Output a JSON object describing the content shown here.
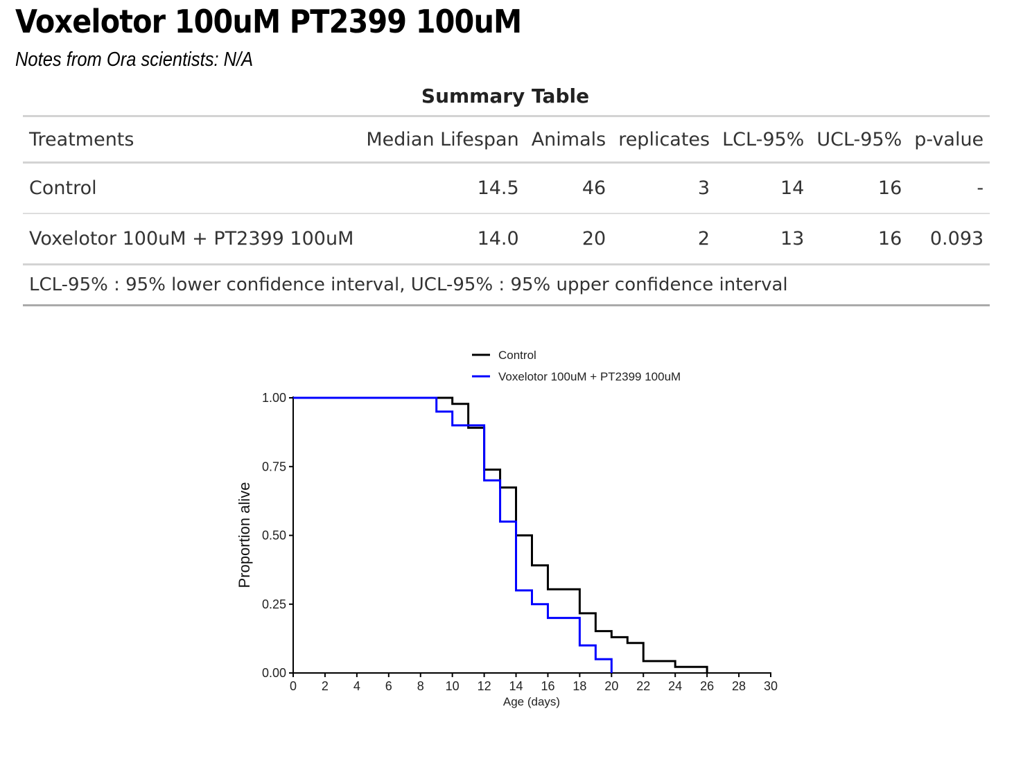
{
  "header": {
    "title": "Voxelotor 100uM PT2399 100uM",
    "notes": "Notes from Ora scientists: N/A"
  },
  "summary_table": {
    "title": "Summary Table",
    "columns": [
      "Treatments",
      "Median Lifespan",
      "Animals",
      "replicates",
      "LCL-95%",
      "UCL-95%",
      "p-value"
    ],
    "rows": [
      [
        "Control",
        "14.5",
        "46",
        "3",
        "14",
        "16",
        "-"
      ],
      [
        "Voxelotor 100uM + PT2399 100uM",
        "14.0",
        "20",
        "2",
        "13",
        "16",
        "0.093"
      ]
    ],
    "footnote": "LCL-95% : 95% lower confidence interval, UCL-95% : 95% upper confidence interval"
  },
  "chart_data": {
    "type": "line",
    "step": true,
    "xlabel": "Age (days)",
    "ylabel": "Proportion alive",
    "xlim": [
      0,
      30
    ],
    "ylim": [
      0,
      1
    ],
    "xticks": [
      "0",
      "2",
      "4",
      "6",
      "8",
      "10",
      "12",
      "14",
      "16",
      "18",
      "20",
      "22",
      "24",
      "26",
      "28",
      "30"
    ],
    "yticks": [
      "0.00",
      "0.25",
      "0.50",
      "0.75",
      "1.00"
    ],
    "legend_position": "top",
    "series": [
      {
        "name": "Control",
        "color": "#000000",
        "x": [
          0,
          10,
          11,
          12,
          13,
          14,
          15,
          16,
          18,
          19,
          20,
          21,
          22,
          24,
          26
        ],
        "y": [
          1,
          0.978,
          0.891,
          0.739,
          0.674,
          0.5,
          0.391,
          0.304,
          0.217,
          0.152,
          0.13,
          0.109,
          0.043,
          0.022,
          0
        ]
      },
      {
        "name": "Voxelotor 100uM + PT2399 100uM",
        "color": "#0000ff",
        "x": [
          0,
          9,
          10,
          12,
          13,
          14,
          15,
          16,
          18,
          19,
          20
        ],
        "y": [
          1,
          0.95,
          0.9,
          0.7,
          0.55,
          0.3,
          0.25,
          0.2,
          0.1,
          0.05,
          0
        ]
      }
    ]
  }
}
